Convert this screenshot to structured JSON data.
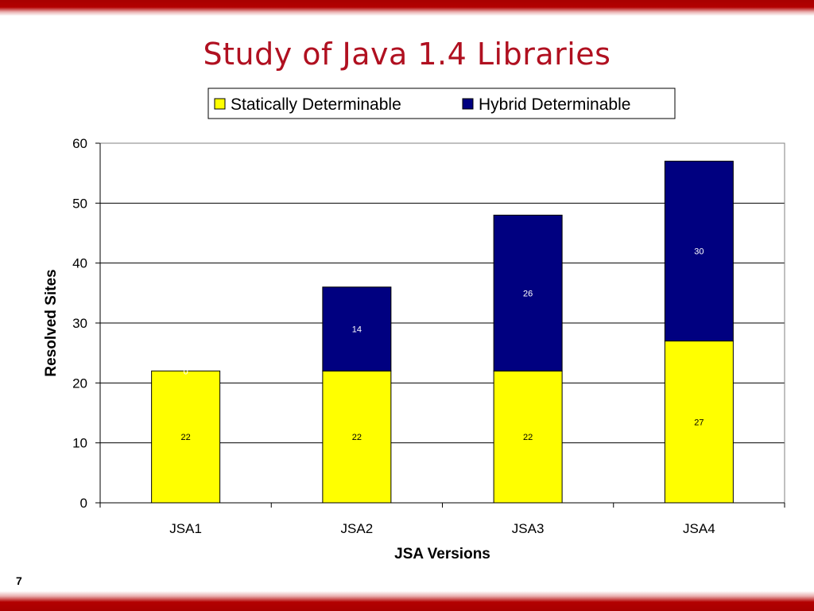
{
  "slide": {
    "title": "Study of Java 1.4 Libraries",
    "number": "7"
  },
  "colors": {
    "accent": "#b01020",
    "statically": "#ffff00",
    "hybrid": "#000080",
    "banner": "#b30000"
  },
  "chart_data": {
    "type": "bar",
    "stacked": true,
    "categories": [
      "JSA1",
      "JSA2",
      "JSA3",
      "JSA4"
    ],
    "series": [
      {
        "name": "Statically Determinable",
        "values": [
          22,
          22,
          22,
          27
        ],
        "color": "#ffff00",
        "label_color": "#000000"
      },
      {
        "name": "Hybrid Determinable",
        "values": [
          0,
          14,
          26,
          30
        ],
        "color": "#000080",
        "label_color": "#ffffff"
      }
    ],
    "data_labels": [
      [
        "22",
        "22",
        "22",
        "27"
      ],
      [
        "0",
        "14",
        "26",
        "30"
      ]
    ],
    "xlabel": "JSA Versions",
    "ylabel": "Resolved Sites",
    "ylim": [
      0,
      60
    ],
    "yticks": [
      0,
      10,
      20,
      30,
      40,
      50,
      60
    ],
    "grid": true,
    "legend_position": "top-right"
  }
}
